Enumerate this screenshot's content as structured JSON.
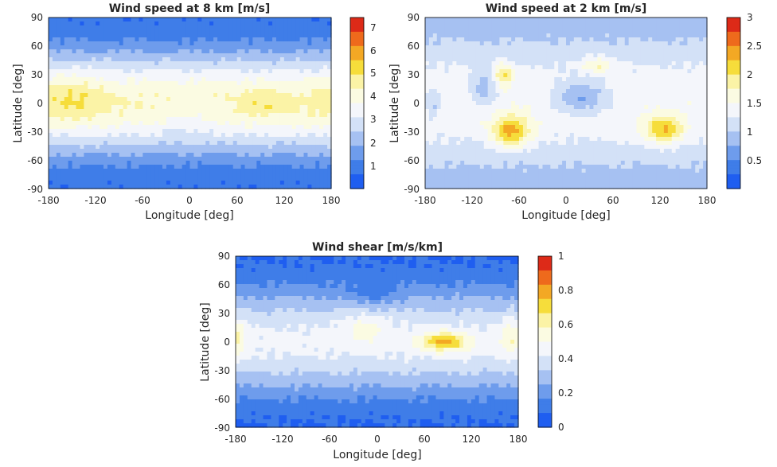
{
  "figure": {
    "colormap": [
      "#1f5ef0",
      "#3f7de8",
      "#6e9cec",
      "#a6c1f2",
      "#d3e1f7",
      "#f4f6fb",
      "#fbfbe2",
      "#fbf3a6",
      "#f6dd3b",
      "#f3a824",
      "#ee6a1c",
      "#dd2a18"
    ],
    "contour_color": "#000000"
  },
  "chart_data": [
    {
      "type": "heatmap",
      "title": "Wind speed at 8 km [m/s]",
      "xlabel": "Longitude [deg]",
      "ylabel": "Latitude [deg]",
      "xlim": [
        -180,
        180
      ],
      "ylim": [
        -90,
        90
      ],
      "xticks": [
        "-180",
        "-120",
        "-60",
        "0",
        "60",
        "120",
        "180"
      ],
      "yticks": [
        "90",
        "60",
        "30",
        "0",
        "-30",
        "-60",
        "-90"
      ],
      "colorbar": {
        "min": 0,
        "max": 7.5,
        "ticks": [
          "7",
          "6",
          "5",
          "4",
          "3",
          "2",
          "1"
        ]
      },
      "field": "8km"
    },
    {
      "type": "heatmap",
      "title": "Wind speed at 2 km [m/s]",
      "xlabel": "Longitude [deg]",
      "ylabel": "Latitude [deg]",
      "xlim": [
        -180,
        180
      ],
      "ylim": [
        -90,
        90
      ],
      "xticks": [
        "-180",
        "-120",
        "-60",
        "0",
        "60",
        "120",
        "180"
      ],
      "yticks": [
        "90",
        "60",
        "30",
        "0",
        "-30",
        "-60",
        "-90"
      ],
      "colorbar": {
        "min": 0,
        "max": 3,
        "ticks": [
          "3",
          "2.5",
          "2",
          "1.5",
          "1",
          "0.5"
        ]
      },
      "field": "2km"
    },
    {
      "type": "heatmap",
      "title": "Wind shear [m/s/km]",
      "xlabel": "Longitude [deg]",
      "ylabel": "Latitude [deg]",
      "xlim": [
        -180,
        180
      ],
      "ylim": [
        -90,
        90
      ],
      "xticks": [
        "-180",
        "-120",
        "-60",
        "0",
        "60",
        "120",
        "180"
      ],
      "yticks": [
        "90",
        "60",
        "30",
        "0",
        "-30",
        "-60",
        "-90"
      ],
      "colorbar": {
        "min": 0,
        "max": 1,
        "ticks": [
          "1",
          "0.8",
          "0.6",
          "0.4",
          "0.2",
          "0"
        ]
      },
      "field": "shear"
    }
  ]
}
